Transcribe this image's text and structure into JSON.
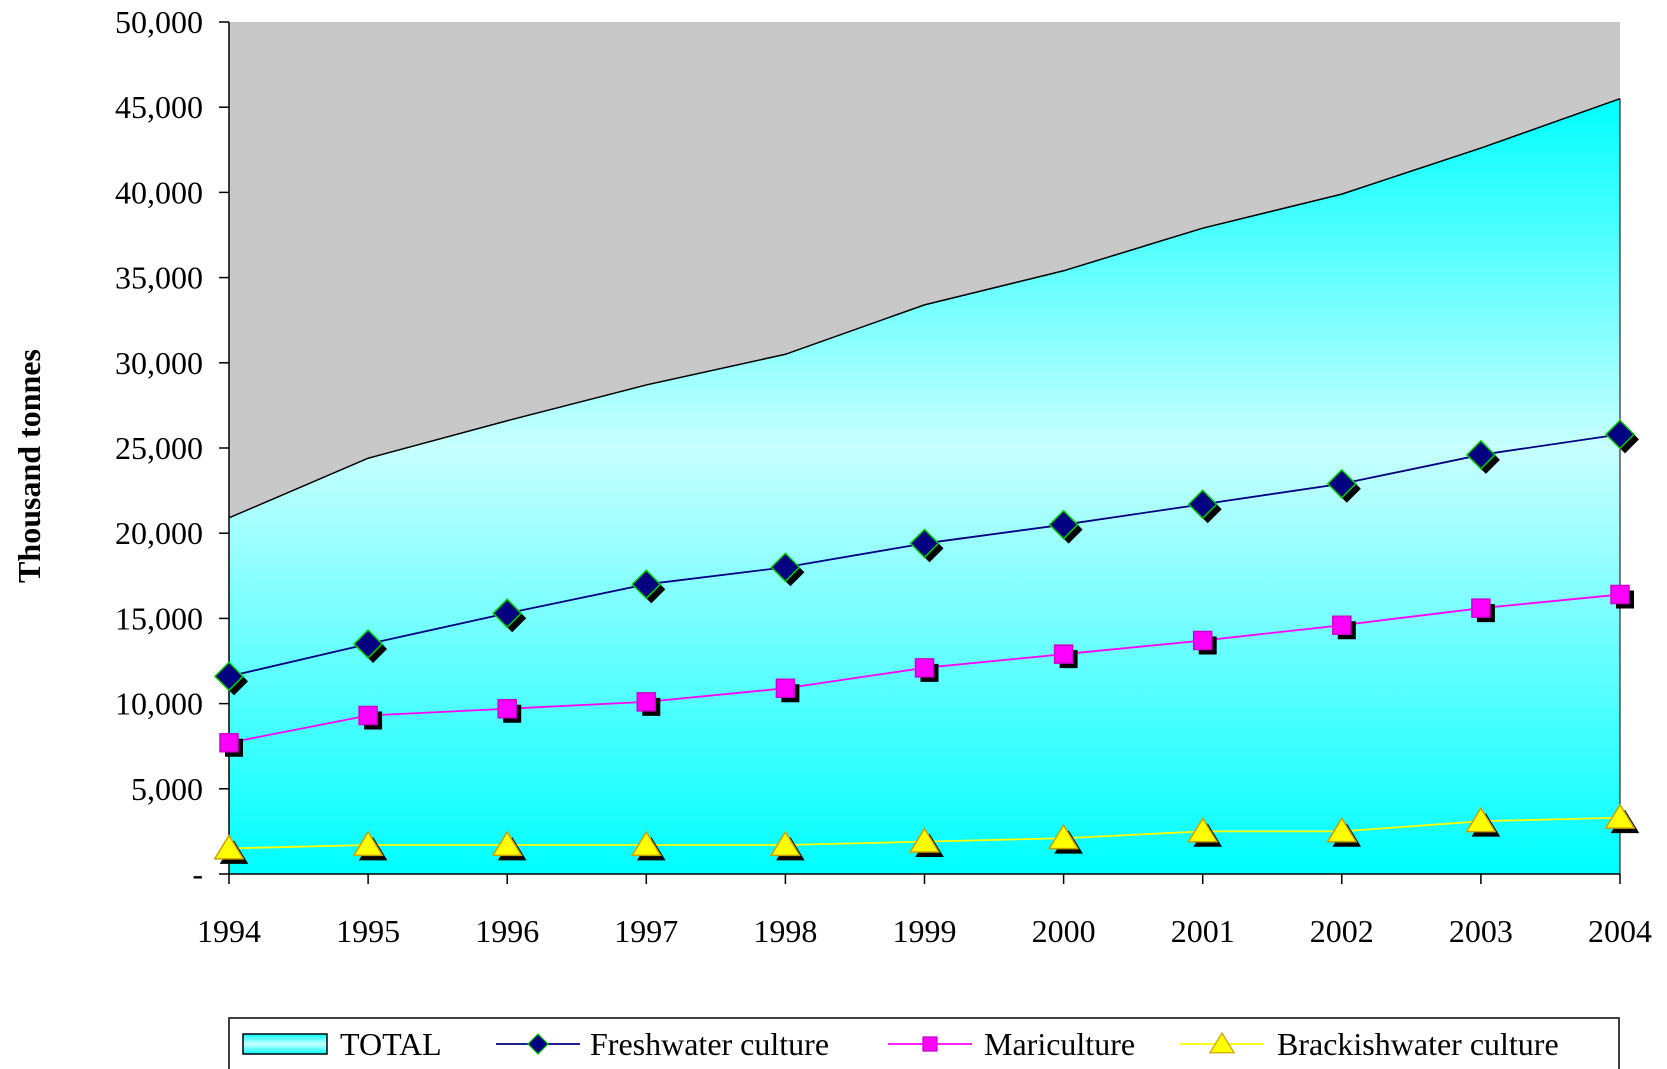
{
  "chart_data": {
    "type": "line",
    "title": "",
    "xlabel": "",
    "ylabel": "Thousand tonnes",
    "ylim": [
      0,
      50000
    ],
    "y_ticks": [
      0,
      5000,
      10000,
      15000,
      20000,
      25000,
      30000,
      35000,
      40000,
      45000,
      50000
    ],
    "y_tick_labels": [
      "-",
      "5,000",
      "10,000",
      "15,000",
      "20,000",
      "25,000",
      "30,000",
      "35,000",
      "40,000",
      "45,000",
      "50,000"
    ],
    "categories": [
      "1994",
      "1995",
      "1996",
      "1997",
      "1998",
      "1999",
      "2000",
      "2001",
      "2002",
      "2003",
      "2004"
    ],
    "legend_position": "bottom",
    "grid": false,
    "series": [
      {
        "name": "TOTAL",
        "kind": "area",
        "color": "#00ffff",
        "values": [
          20900,
          24400,
          26600,
          28700,
          30500,
          33400,
          35400,
          37900,
          39900,
          42600,
          45500
        ]
      },
      {
        "name": "Freshwater culture",
        "kind": "line",
        "marker": "diamond",
        "color": "#000080",
        "values": [
          11600,
          13500,
          15300,
          17000,
          18000,
          19400,
          20500,
          21700,
          22900,
          24600,
          25800
        ]
      },
      {
        "name": "Mariculture",
        "kind": "line",
        "marker": "square",
        "color": "#ff00ff",
        "values": [
          7700,
          9300,
          9700,
          10100,
          10900,
          12100,
          12900,
          13700,
          14600,
          15600,
          16400
        ]
      },
      {
        "name": "Brackishwater culture",
        "kind": "line",
        "marker": "triangle",
        "color": "#ffff00",
        "values": [
          1500,
          1700,
          1700,
          1700,
          1700,
          1900,
          2100,
          2500,
          2500,
          3100,
          3300
        ]
      }
    ]
  }
}
